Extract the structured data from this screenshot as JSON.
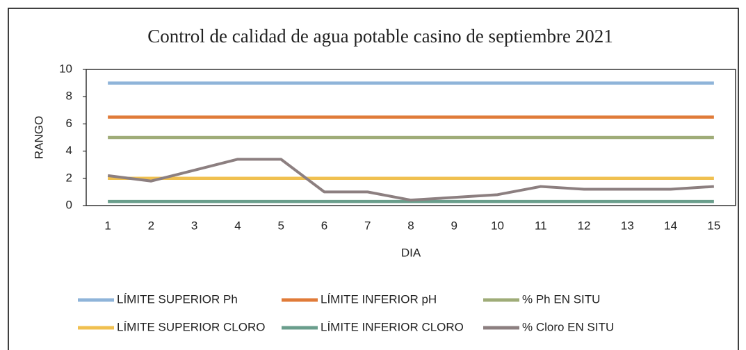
{
  "chart_data": {
    "type": "line",
    "title": "Control de calidad de agua potable casino de septiembre 2021",
    "x_label": "DIA",
    "y_label": "RANGO",
    "categories": [
      "1",
      "2",
      "3",
      "4",
      "5",
      "6",
      "7",
      "8",
      "9",
      "10",
      "11",
      "12",
      "13",
      "14",
      "15"
    ],
    "ylim": [
      0,
      10
    ],
    "yticks": [
      0,
      2,
      4,
      6,
      8,
      10
    ],
    "grid": false,
    "legend": "bottom",
    "series": [
      {
        "name": "LÍMITE SUPERIOR Ph",
        "color": "#8fb4d9",
        "values": [
          9,
          9,
          9,
          9,
          9,
          9,
          9,
          9,
          9,
          9,
          9,
          9,
          9,
          9,
          9
        ]
      },
      {
        "name": "LÍMITE INFERIOR pH",
        "color": "#e07b39",
        "values": [
          6.5,
          6.5,
          6.5,
          6.5,
          6.5,
          6.5,
          6.5,
          6.5,
          6.5,
          6.5,
          6.5,
          6.5,
          6.5,
          6.5,
          6.5
        ]
      },
      {
        "name": "% Ph EN SITU",
        "color": "#9fac78",
        "values": [
          5,
          5,
          5,
          5,
          5,
          5,
          5,
          5,
          5,
          5,
          5,
          5,
          5,
          5,
          5
        ]
      },
      {
        "name": "LÍMITE SUPERIOR CLORO",
        "color": "#f0c050",
        "values": [
          2,
          2,
          2,
          2,
          2,
          2,
          2,
          2,
          2,
          2,
          2,
          2,
          2,
          2,
          2
        ]
      },
      {
        "name": "LÍMITE INFERIOR CLORO",
        "color": "#6a9e8c",
        "values": [
          0.3,
          0.3,
          0.3,
          0.3,
          0.3,
          0.3,
          0.3,
          0.3,
          0.3,
          0.3,
          0.3,
          0.3,
          0.3,
          0.3,
          0.3
        ]
      },
      {
        "name": "% Cloro EN SITU",
        "color": "#8c7f80",
        "values": [
          2.2,
          1.8,
          2.6,
          3.4,
          3.4,
          1.0,
          1.0,
          0.4,
          0.6,
          0.8,
          1.4,
          1.2,
          1.2,
          1.2,
          1.4
        ]
      }
    ]
  }
}
